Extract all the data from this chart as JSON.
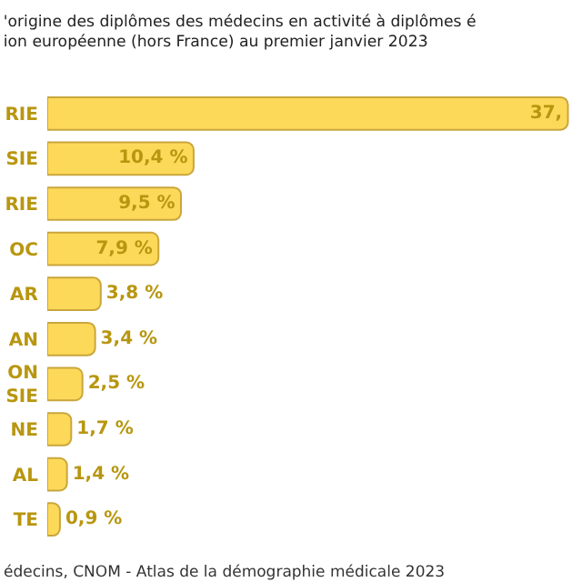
{
  "chart_data": {
    "type": "bar",
    "orientation": "horizontal",
    "title": "'origine des diplômes des médecins en activité à diplômes é\nion européenne (hors France) au premier janvier 2023",
    "categories": [
      "RIE",
      "SIE",
      "RIE",
      "OC",
      "AR",
      "AN",
      "ON\nSIE",
      "NE",
      "AL",
      "TE"
    ],
    "values": [
      37,
      10.4,
      9.5,
      7.9,
      3.8,
      3.4,
      2.5,
      1.7,
      1.4,
      0.9
    ],
    "value_labels": [
      "37,",
      "10,4 %",
      "9,5 %",
      "7,9 %",
      "3,8 %",
      "3,4 %",
      "2,5 %",
      "1,7 %",
      "1,4 %",
      "0,9 %"
    ],
    "color": "#fdd95a",
    "xlim": [
      0,
      38
    ],
    "annotations": [
      "édecins, CNOM - Atlas de la démographie médicale 2023"
    ]
  }
}
